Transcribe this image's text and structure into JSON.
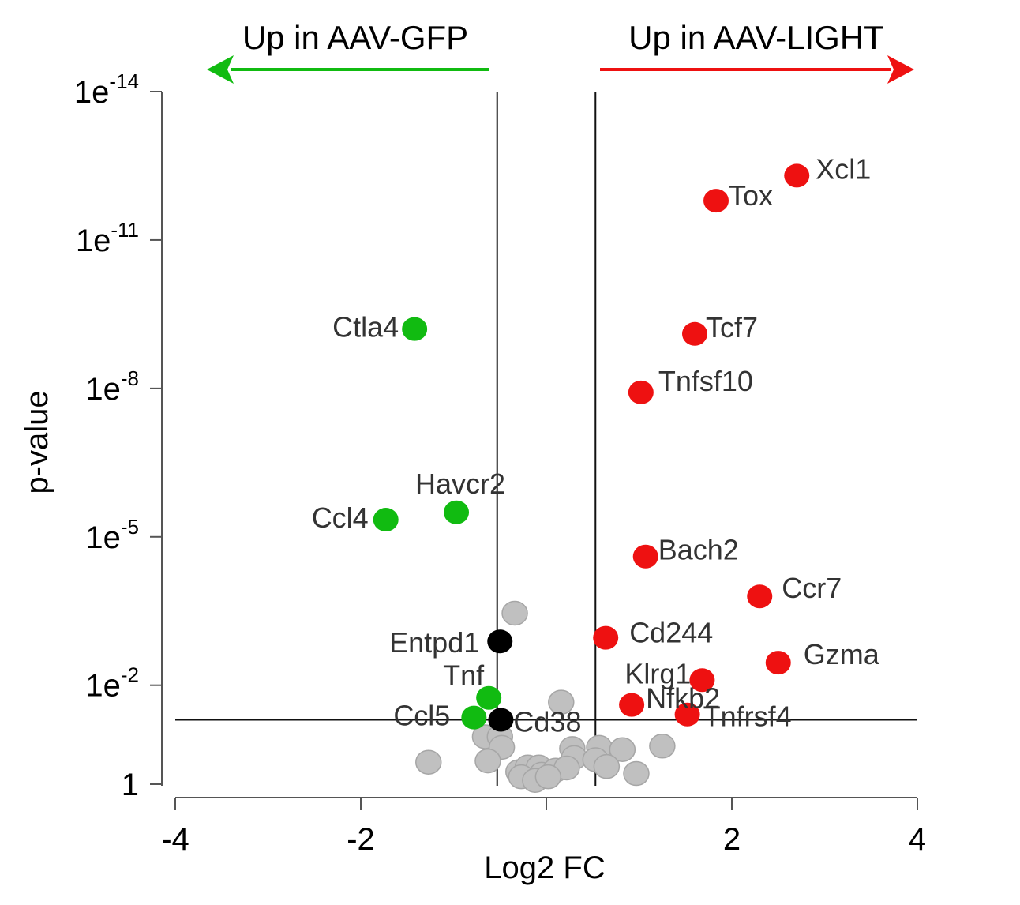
{
  "chart_data": {
    "type": "scatter",
    "title": "",
    "xlabel": "Log2 FC",
    "ylabel": "p-value",
    "xlim": [
      -4,
      4
    ],
    "y_scale": "log (reversed, -log10 p)",
    "ylim": [
      1,
      1e-14
    ],
    "x_ticks": [
      {
        "value": -4,
        "label": "-4"
      },
      {
        "value": -2,
        "label": "-2"
      },
      {
        "value": 2,
        "label": "2"
      },
      {
        "value": 4,
        "label": "4"
      }
    ],
    "y_ticks": [
      {
        "value": 1e-14,
        "base": "1e",
        "exp": "-14"
      },
      {
        "value": 1e-11,
        "base": "1e",
        "exp": "-11"
      },
      {
        "value": 1e-08,
        "base": "1e",
        "exp": "-8"
      },
      {
        "value": 1e-05,
        "base": "1e",
        "exp": "-5"
      },
      {
        "value": 0.01,
        "base": "1e",
        "exp": "-2"
      },
      {
        "value": 1,
        "base": "1",
        "exp": ""
      }
    ],
    "thresholds": {
      "log2fc": [
        -0.53,
        0.53
      ],
      "p_value": 0.05
    },
    "colors": {
      "up": "#ee1111",
      "down": "#11bb11",
      "labeled_ns": "#000000",
      "ns": "#c0c0c0",
      "ns_stroke": "#a6a6a6"
    },
    "annotations": {
      "left": {
        "text": "Up in AAV-GFP",
        "color": "#11bb11"
      },
      "right": {
        "text": "Up in AAV-LIGHT",
        "color": "#ee1111"
      }
    },
    "series": [
      {
        "group": "up",
        "color": "#ee1111",
        "points": [
          {
            "gene": "Xcl1",
            "x": 2.7,
            "p": 5e-13
          },
          {
            "gene": "Tox",
            "x": 1.83,
            "p": 1.6e-12
          },
          {
            "gene": "Tcf7",
            "x": 1.6,
            "p": 7.9e-10
          },
          {
            "gene": "Tnfsf10",
            "x": 1.02,
            "p": 1.2e-08
          },
          {
            "gene": "Bach2",
            "x": 1.07,
            "p": 2.5e-05
          },
          {
            "gene": "Ccr7",
            "x": 2.3,
            "p": 0.00016
          },
          {
            "gene": "Cd244",
            "x": 0.64,
            "p": 0.0011
          },
          {
            "gene": "Gzma",
            "x": 2.5,
            "p": 0.0035
          },
          {
            "gene": "Klrg1",
            "x": 1.68,
            "p": 0.0079
          },
          {
            "gene": "Nfkb2",
            "x": 0.92,
            "p": 0.025
          },
          {
            "gene": "Tnfrsf4",
            "x": 1.52,
            "p": 0.039
          }
        ]
      },
      {
        "group": "down",
        "color": "#11bb11",
        "points": [
          {
            "gene": "Ctla4",
            "x": -1.42,
            "p": 6.3e-10
          },
          {
            "gene": "Havcr2",
            "x": -0.97,
            "p": 3.2e-06
          },
          {
            "gene": "Ccl4",
            "x": -1.73,
            "p": 4.5e-06
          },
          {
            "gene": "Tnf",
            "x": -0.62,
            "p": 0.018
          },
          {
            "gene": "Ccl5",
            "x": -0.78,
            "p": 0.045
          }
        ]
      },
      {
        "group": "labeled_ns",
        "color": "#000000",
        "points": [
          {
            "gene": "Entpd1",
            "x": -0.5,
            "p": 0.0013
          },
          {
            "gene": "Cd38",
            "x": -0.49,
            "p": 0.05
          }
        ]
      },
      {
        "group": "ns",
        "color": "#c0c0c0",
        "points": [
          {
            "x": -0.34,
            "p": 0.00035
          },
          {
            "x": 0.16,
            "p": 0.022
          },
          {
            "x": -0.66,
            "p": 0.11
          },
          {
            "x": -0.5,
            "p": 0.11
          },
          {
            "x": -0.48,
            "p": 0.18
          },
          {
            "x": 0.28,
            "p": 0.19
          },
          {
            "x": 0.57,
            "p": 0.18
          },
          {
            "x": 0.82,
            "p": 0.2
          },
          {
            "x": 1.25,
            "p": 0.17
          },
          {
            "x": -1.27,
            "p": 0.36
          },
          {
            "x": -0.63,
            "p": 0.34
          },
          {
            "x": 0.3,
            "p": 0.29
          },
          {
            "x": 0.53,
            "p": 0.32
          },
          {
            "x": -0.3,
            "p": 0.56
          },
          {
            "x": -0.2,
            "p": 0.45
          },
          {
            "x": -0.08,
            "p": 0.45
          },
          {
            "x": -0.05,
            "p": 0.63
          },
          {
            "x": 0.1,
            "p": 0.52
          },
          {
            "x": 0.22,
            "p": 0.47
          },
          {
            "x": 0.65,
            "p": 0.44
          },
          {
            "x": 0.97,
            "p": 0.61
          },
          {
            "x": -0.27,
            "p": 0.71
          },
          {
            "x": -0.12,
            "p": 0.84
          },
          {
            "x": 0.02,
            "p": 0.71
          }
        ]
      }
    ]
  }
}
